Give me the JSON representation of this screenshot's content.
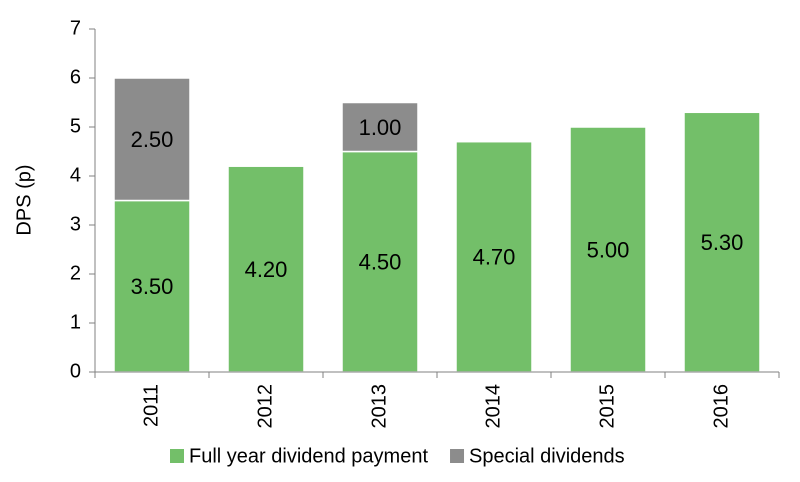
{
  "chart_data": {
    "type": "stacked-bar",
    "ylabel": "DPS (p)",
    "categories": [
      "2011",
      "2012",
      "2013",
      "2014",
      "2015",
      "2016"
    ],
    "series": [
      {
        "name": "Full year dividend payment",
        "color": "#73bf69",
        "values": [
          3.5,
          4.2,
          4.5,
          4.7,
          5.0,
          5.3
        ],
        "value_labels": [
          "3.50",
          "4.20",
          "4.50",
          "4.70",
          "5.00",
          "5.30"
        ]
      },
      {
        "name": "Special dividends",
        "color": "#8c8c8c",
        "values": [
          2.5,
          null,
          1.0,
          null,
          null,
          null
        ],
        "value_labels": [
          "2.50",
          null,
          "1.00",
          null,
          null,
          null
        ]
      }
    ],
    "ylim": [
      0,
      7
    ],
    "yticks": [
      0,
      1,
      2,
      3,
      4,
      5,
      6,
      7
    ],
    "grid": false,
    "legend": "bottom"
  }
}
